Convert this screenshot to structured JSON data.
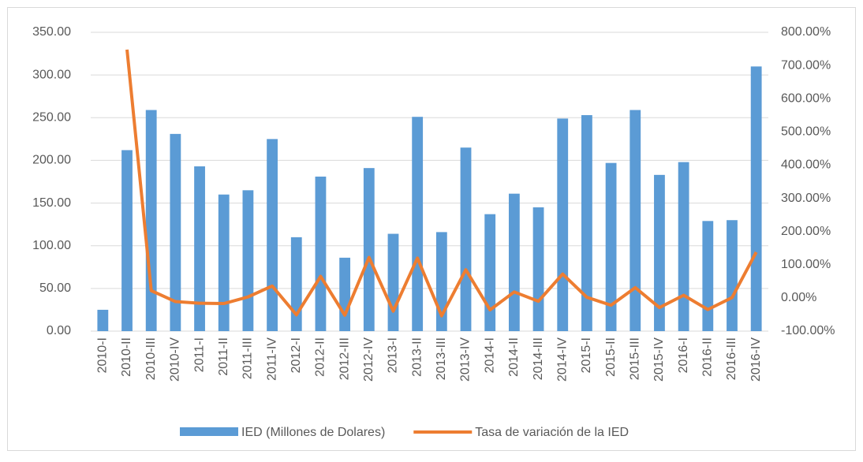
{
  "chart_data": {
    "type": "bar-line",
    "categories": [
      "2010-I",
      "2010-II",
      "2010-III",
      "2010-IV",
      "2011-I",
      "2011-II",
      "2011-III",
      "2011-IV",
      "2012-I",
      "2012-II",
      "2012-III",
      "2012-IV",
      "2013-I",
      "2013-II",
      "2013-III",
      "2013-IV",
      "2014-I",
      "2014-II",
      "2014-III",
      "2014-IV",
      "2015-I",
      "2015-II",
      "2015-III",
      "2015-IV",
      "2016-I",
      "2016-II",
      "2016-III",
      "2016-IV"
    ],
    "series": [
      {
        "name": "IED (Millones de Dolares)",
        "type": "bar",
        "color": "#5b9bd5",
        "values": [
          25,
          212,
          259,
          231,
          193,
          160,
          165,
          225,
          110,
          181,
          86,
          191,
          114,
          251,
          116,
          215,
          137,
          161,
          145,
          249,
          253,
          197,
          259,
          183,
          198,
          129,
          130,
          310
        ]
      },
      {
        "name": "Tasa de variación de la IED",
        "type": "line",
        "axis": "y2",
        "color": "#ed7d31",
        "values": [
          null,
          748,
          22,
          -11,
          -16,
          -17,
          3,
          36,
          -51,
          65,
          -52,
          122,
          -40,
          120,
          -54,
          85,
          -36,
          18,
          -10,
          72,
          2,
          -22,
          31,
          -29,
          8,
          -35,
          1,
          138
        ]
      }
    ],
    "ylim": [
      0,
      350
    ],
    "yticks": [
      {
        "value": 0,
        "label": "0.00"
      },
      {
        "value": 50,
        "label": "50.00"
      },
      {
        "value": 100,
        "label": "100.00"
      },
      {
        "value": 150,
        "label": "150.00"
      },
      {
        "value": 200,
        "label": "200.00"
      },
      {
        "value": 250,
        "label": "250.00"
      },
      {
        "value": 300,
        "label": "300.00"
      },
      {
        "value": 350,
        "label": "350.00"
      }
    ],
    "y2lim": [
      -100,
      800
    ],
    "y2ticks": [
      {
        "value": -100,
        "label": "-100.00%"
      },
      {
        "value": 0,
        "label": "0.00%"
      },
      {
        "value": 100,
        "label": "100.00%"
      },
      {
        "value": 200,
        "label": "200.00%"
      },
      {
        "value": 300,
        "label": "300.00%"
      },
      {
        "value": 400,
        "label": "400.00%"
      },
      {
        "value": 500,
        "label": "500.00%"
      },
      {
        "value": 600,
        "label": "600.00%"
      },
      {
        "value": 700,
        "label": "700.00%"
      },
      {
        "value": 800,
        "label": "800.00%"
      }
    ],
    "grid": true
  }
}
